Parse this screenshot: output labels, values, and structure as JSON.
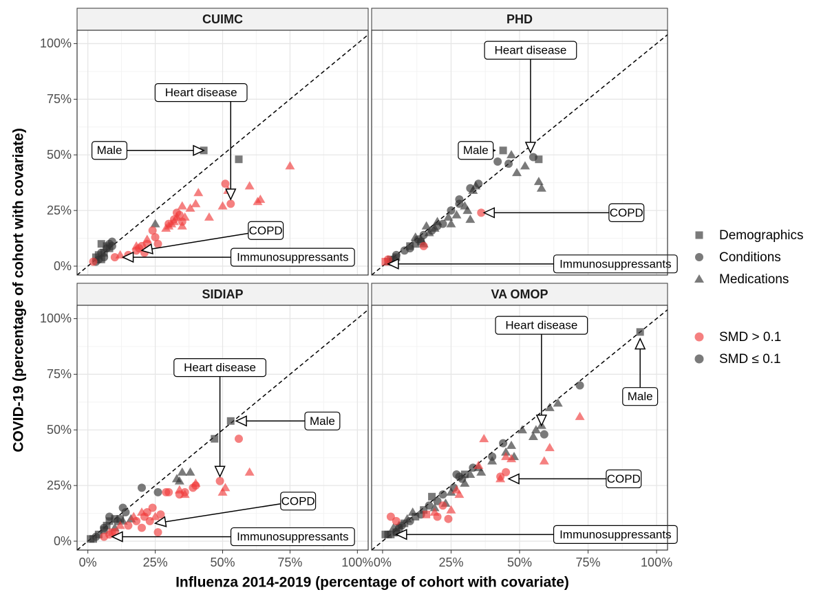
{
  "chart_data": {
    "type": "scatter",
    "x_label": "Influenza 2014-2019 (percentage of cohort with covariate)",
    "y_label": "COVID-19 (percentage of cohort with covariate)",
    "xlim": [
      -4,
      104
    ],
    "ylim": [
      -4,
      106
    ],
    "xticks": [
      {
        "value": 0,
        "label": "0%"
      },
      {
        "value": 25,
        "label": "25%"
      },
      {
        "value": 50,
        "label": "50%"
      },
      {
        "value": 75,
        "label": "75%"
      },
      {
        "value": 100,
        "label": "100%"
      }
    ],
    "yticks": [
      {
        "value": 0,
        "label": "0%"
      },
      {
        "value": 25,
        "label": "25%"
      },
      {
        "value": 50,
        "label": "50%"
      },
      {
        "value": 75,
        "label": "75%"
      },
      {
        "value": 100,
        "label": "100%"
      }
    ],
    "minor_xticks": [
      12.5,
      37.5,
      62.5,
      87.5
    ],
    "minor_yticks": [
      12.5,
      37.5,
      62.5,
      87.5
    ],
    "grid": true,
    "shape_legend": [
      {
        "label": "Demographics",
        "shape": "square"
      },
      {
        "label": "Conditions",
        "shape": "circle"
      },
      {
        "label": "Medications",
        "shape": "triangle"
      }
    ],
    "color_legend": [
      {
        "label": "SMD > 0.1",
        "color": "#f03c3c"
      },
      {
        "label": "SMD ≤ 0.1",
        "color": "#333333"
      }
    ],
    "panels": [
      {
        "title": "CUIMC",
        "series": [
          {
            "shape": 0,
            "color": 1,
            "x": [
              43,
              56,
              5,
              7,
              4,
              3,
              5,
              6,
              8
            ],
            "y": [
              52,
              48,
              10,
              9,
              5,
              4,
              3,
              6,
              8
            ]
          },
          {
            "shape": 1,
            "color": 1,
            "x": [
              9,
              7,
              5,
              4,
              6,
              3,
              8,
              9
            ],
            "y": [
              11,
              8,
              6,
              3,
              4,
              2,
              10,
              9
            ]
          },
          {
            "shape": 2,
            "color": 1,
            "x": [
              25
            ],
            "y": [
              19
            ]
          },
          {
            "shape": 1,
            "color": 0,
            "x": [
              2,
              10,
              15,
              18,
              20,
              22,
              25,
              26,
              24,
              30,
              32,
              33,
              34,
              35,
              51,
              53,
              19,
              21
            ],
            "y": [
              2,
              4,
              5,
              7,
              9,
              10,
              13,
              10,
              16,
              19,
              21,
              24,
              23,
              20,
              37,
              28,
              8,
              6
            ]
          },
          {
            "shape": 2,
            "color": 0,
            "x": [
              12,
              18,
              22,
              29,
              30,
              31,
              33,
              35,
              36,
              38,
              40,
              41,
              45,
              50,
              52,
              60,
              63,
              64,
              75,
              35,
              32
            ],
            "y": [
              5,
              9,
              12,
              17,
              18,
              19,
              22,
              27,
              22,
              26,
              28,
              33,
              22,
              27,
              34,
              36,
              29,
              30,
              45,
              18,
              20
            ]
          }
        ],
        "annotations": [
          {
            "text": "Male",
            "x": 43,
            "y": 52
          },
          {
            "text": "Heart disease",
            "x": 53,
            "y": 30
          },
          {
            "text": "COPD",
            "x": 20,
            "y": 7
          },
          {
            "text": "Immunosuppressants",
            "x": 13,
            "y": 4
          }
        ]
      },
      {
        "title": "PHD",
        "series": [
          {
            "shape": 0,
            "color": 1,
            "x": [
              44,
              57,
              5,
              10,
              12,
              14,
              2,
              3
            ],
            "y": [
              52,
              48,
              4,
              9,
              10,
              11,
              2,
              3
            ]
          },
          {
            "shape": 1,
            "color": 1,
            "x": [
              42,
              46,
              55,
              35,
              32,
              28,
              28,
              25,
              22,
              18,
              15,
              13,
              10,
              8,
              5,
              4,
              3,
              20
            ],
            "y": [
              47,
              46,
              49,
              37,
              35,
              30,
              28,
              25,
              19,
              16,
              14,
              12,
              8,
              7,
              5,
              3,
              2,
              18
            ]
          },
          {
            "shape": 2,
            "color": 1,
            "x": [
              47,
              49,
              52,
              57,
              58,
              34,
              33,
              30,
              31,
              32,
              27,
              24,
              20,
              17,
              16,
              14,
              12,
              19,
              15,
              25
            ],
            "y": [
              50,
              42,
              45,
              38,
              35,
              36,
              34,
              27,
              25,
              21,
              23,
              22,
              20,
              15,
              18,
              12,
              13,
              17,
              10,
              19
            ]
          },
          {
            "shape": 1,
            "color": 0,
            "x": [
              36,
              2,
              15
            ],
            "y": [
              24,
              3,
              9
            ]
          },
          {
            "shape": 0,
            "color": 0,
            "x": [
              1
            ],
            "y": [
              2
            ]
          }
        ],
        "annotations": [
          {
            "text": "Male",
            "x": 41,
            "y": 52
          },
          {
            "text": "Heart disease",
            "x": 54,
            "y": 51
          },
          {
            "text": "COPD",
            "x": 37,
            "y": 24
          },
          {
            "text": "Immunosuppressants",
            "x": 2,
            "y": 1
          }
        ]
      },
      {
        "title": "SIDIAP",
        "series": [
          {
            "shape": 0,
            "color": 1,
            "x": [
              53,
              47,
              8,
              6,
              4,
              2,
              1,
              10,
              12,
              7
            ],
            "y": [
              54,
              46,
              9,
              5,
              3,
              1,
              1,
              10,
              10,
              7
            ]
          },
          {
            "shape": 1,
            "color": 1,
            "x": [
              20,
              26,
              13,
              8,
              6,
              3,
              14,
              11
            ],
            "y": [
              24,
              22,
              15,
              11,
              6,
              2,
              13,
              9
            ]
          },
          {
            "shape": 2,
            "color": 1,
            "x": [
              34,
              35,
              38,
              33,
              16,
              13,
              10
            ],
            "y": [
              27,
              31,
              31,
              28,
              10,
              9,
              6
            ]
          },
          {
            "shape": 1,
            "color": 0,
            "x": [
              56,
              49,
              39,
              30,
              29,
              26,
              22,
              20,
              24,
              18,
              15,
              10,
              8,
              6,
              34,
              36,
              40,
              21,
              27,
              23
            ],
            "y": [
              46,
              27,
              24,
              22,
              22,
              4,
              13,
              6,
              15,
              9,
              7,
              4,
              3,
              2,
              21,
              22,
              25,
              11,
              12,
              9
            ]
          },
          {
            "shape": 2,
            "color": 0,
            "x": [
              34,
              36,
              40,
              51,
              50,
              60,
              20,
              17,
              25,
              12
            ],
            "y": [
              23,
              21,
              26,
              24,
              22,
              31,
              13,
              11,
              11,
              7
            ]
          },
          {
            "shape": 0,
            "color": 0,
            "x": [
              9
            ],
            "y": [
              4
            ]
          }
        ],
        "annotations": [
          {
            "text": "Heart disease",
            "x": 49,
            "y": 29
          },
          {
            "text": "Male",
            "x": 55,
            "y": 54
          },
          {
            "text": "COPD",
            "x": 25,
            "y": 8
          },
          {
            "text": "Immunosuppressants",
            "x": 9,
            "y": 2
          }
        ]
      },
      {
        "title": "VA OMOP",
        "series": [
          {
            "shape": 0,
            "color": 1,
            "x": [
              94,
              30,
              18,
              15,
              12,
              8,
              6,
              5,
              3,
              2,
              1
            ],
            "y": [
              94,
              30,
              20,
              14,
              11,
              8,
              6,
              4,
              3,
              3,
              3
            ]
          },
          {
            "shape": 1,
            "color": 1,
            "x": [
              72,
              59,
              44,
              40,
              33,
              29,
              27,
              22,
              20,
              17,
              14,
              10,
              7,
              5,
              28,
              26
            ],
            "y": [
              70,
              48,
              44,
              38,
              33,
              28,
              30,
              21,
              18,
              16,
              12,
              9,
              7,
              4,
              29,
              24
            ]
          },
          {
            "shape": 2,
            "color": 1,
            "x": [
              64,
              61,
              58,
              56,
              55,
              51,
              48,
              47,
              45,
              40,
              35,
              36,
              32,
              25,
              23,
              19,
              11,
              9,
              6,
              4,
              30
            ],
            "y": [
              62,
              60,
              52,
              50,
              47,
              50,
              38,
              43,
              40,
              36,
              33,
              31,
              30,
              22,
              17,
              15,
              13,
              10,
              7,
              6,
              26
            ]
          },
          {
            "shape": 1,
            "color": 0,
            "x": [
              43,
              45,
              3,
              5,
              22,
              20,
              24
            ],
            "y": [
              29,
              31,
              11,
              9,
              16,
              11,
              10
            ]
          },
          {
            "shape": 2,
            "color": 0,
            "x": [
              72,
              61,
              59,
              47,
              45,
              37,
              35,
              28,
              27,
              25,
              19,
              43
            ],
            "y": [
              56,
              42,
              36,
              37,
              38,
              46,
              34,
              21,
              23,
              14,
              13,
              28
            ]
          },
          {
            "shape": 0,
            "color": 0,
            "x": [
              16
            ],
            "y": [
              12
            ]
          }
        ],
        "annotations": [
          {
            "text": "Heart disease",
            "x": 58,
            "y": 52
          },
          {
            "text": "COPD",
            "x": 46,
            "y": 28
          },
          {
            "text": "Immunosuppressants",
            "x": 5,
            "y": 3
          },
          {
            "text": "Male",
            "x": 94,
            "y": 91
          }
        ]
      }
    ]
  }
}
